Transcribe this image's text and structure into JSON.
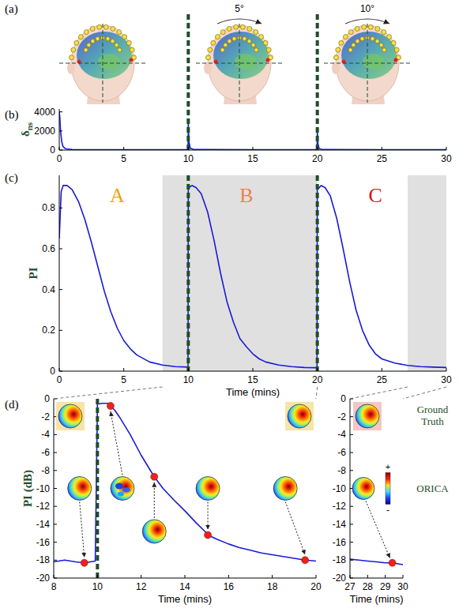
{
  "figure": {
    "panel_labels": [
      "(a)",
      "(b)",
      "(c)",
      "(d)"
    ]
  },
  "panel_a": {
    "rotation_labels": [
      "5°",
      "10°"
    ]
  },
  "chart_data": [
    {
      "type": "line",
      "xlim": [
        0,
        30
      ],
      "ylim": [
        0,
        4300
      ],
      "xticks": [
        0,
        5,
        10,
        15,
        20,
        25,
        30
      ],
      "yticks": [
        0,
        2000,
        4000
      ],
      "ylabel": "δ",
      "ylabel_subscript": "ns",
      "grid": false,
      "series": [
        {
          "color": "#1a1ad8",
          "x": [
            0,
            0.05,
            0.1,
            0.2,
            0.3,
            0.5,
            1,
            5,
            9.98,
            10,
            10.05,
            10.15,
            10.4,
            15,
            19.98,
            20,
            20.05,
            20.15,
            20.4,
            25,
            30
          ],
          "values": [
            4000,
            3300,
            2000,
            800,
            350,
            130,
            60,
            40,
            40,
            2800,
            900,
            200,
            60,
            40,
            40,
            2000,
            600,
            150,
            50,
            40,
            40
          ]
        }
      ],
      "event_times": [
        10,
        20
      ]
    },
    {
      "type": "line",
      "xlim": [
        0,
        30
      ],
      "ylim": [
        0,
        0.96
      ],
      "xticks": [
        0,
        5,
        10,
        15,
        20,
        25,
        30
      ],
      "yticks": [
        0,
        0.2,
        0.4,
        0.6,
        0.8
      ],
      "xlabel": "Time (mins)",
      "ylabel": "PI",
      "grid": false,
      "series": [
        {
          "color": "#1a1ad8",
          "x": [
            0,
            0.15,
            0.3,
            0.6,
            1,
            1.5,
            2,
            2.5,
            3,
            3.5,
            4,
            4.5,
            5,
            5.5,
            6,
            7,
            8,
            9,
            9.98,
            10,
            10.3,
            10.6,
            11,
            11.5,
            12,
            12.5,
            13,
            13.5,
            14,
            14.5,
            15,
            15.5,
            16,
            17,
            18,
            19,
            19.98,
            20,
            20.3,
            20.6,
            21,
            21.5,
            22,
            22.5,
            23,
            23.5,
            24,
            24.5,
            25,
            26,
            27,
            28,
            29,
            30
          ],
          "values": [
            0.65,
            0.88,
            0.91,
            0.91,
            0.89,
            0.83,
            0.74,
            0.63,
            0.51,
            0.39,
            0.29,
            0.21,
            0.15,
            0.11,
            0.08,
            0.045,
            0.03,
            0.022,
            0.02,
            0.9,
            0.91,
            0.9,
            0.87,
            0.78,
            0.64,
            0.48,
            0.34,
            0.24,
            0.16,
            0.12,
            0.085,
            0.06,
            0.045,
            0.03,
            0.022,
            0.018,
            0.017,
            0.89,
            0.91,
            0.9,
            0.86,
            0.75,
            0.6,
            0.44,
            0.3,
            0.2,
            0.13,
            0.085,
            0.06,
            0.04,
            0.028,
            0.022,
            0.02,
            0.018
          ]
        }
      ],
      "event_times": [
        10,
        20
      ],
      "shaded_ranges": [
        [
          8,
          20
        ],
        [
          27,
          30
        ]
      ],
      "annotations": [
        {
          "text": "A",
          "x": 4.5,
          "y": 0.83,
          "color": "#f0a30a"
        },
        {
          "text": "B",
          "x": 14.5,
          "y": 0.83,
          "color": "#f08050"
        },
        {
          "text": "C",
          "x": 24.5,
          "y": 0.83,
          "color": "#e01010"
        }
      ]
    },
    {
      "type": "line",
      "xlim": [
        8,
        20
      ],
      "ylim": [
        -20,
        0
      ],
      "xticks": [
        8,
        10,
        12,
        14,
        16,
        18,
        20
      ],
      "yticks": [
        0,
        -2,
        -4,
        -6,
        -8,
        -10,
        -12,
        -14,
        -16,
        -18,
        -20
      ],
      "xlabel": "Time (mins)",
      "ylabel": "PI (dB)",
      "grid": false,
      "series": [
        {
          "color": "#1a1ad8",
          "x": [
            8,
            8.5,
            9,
            9.4,
            9.9,
            10,
            10.2,
            10.5,
            10.6,
            10.8,
            11,
            11.5,
            12,
            12.6,
            13,
            13.5,
            14,
            14.5,
            15,
            15.05,
            15.5,
            16,
            16.5,
            17,
            17.5,
            18,
            18.5,
            19,
            19.5,
            20
          ],
          "values": [
            -18.2,
            -18.0,
            -18.2,
            -18.3,
            -18.1,
            -0.6,
            -0.5,
            -0.5,
            -0.8,
            -1.3,
            -2,
            -4,
            -6.3,
            -8.7,
            -10,
            -11.3,
            -12.5,
            -13.8,
            -15.0,
            -15.2,
            -15.7,
            -16.2,
            -16.6,
            -16.9,
            -17.2,
            -17.4,
            -17.6,
            -17.8,
            -18.0,
            -18.1
          ]
        },
        {
          "type": "scatter",
          "marker": "circle",
          "color": "#e8241c",
          "x": [
            9.4,
            10.6,
            12.6,
            15.05,
            19.5
          ],
          "values": [
            -18.3,
            -0.8,
            -8.7,
            -15.2,
            -18.0
          ]
        }
      ],
      "event_times": [
        10
      ]
    },
    {
      "type": "line",
      "xlim": [
        27,
        30
      ],
      "ylim": [
        -20,
        0
      ],
      "xticks": [
        27,
        28,
        29,
        30
      ],
      "yticks": [
        0,
        -2,
        -4,
        -6,
        -8,
        -10,
        -12,
        -14,
        -16,
        -18,
        -20
      ],
      "xlabel": "Time (mins)",
      "grid": false,
      "series": [
        {
          "color": "#1a1ad8",
          "x": [
            27,
            27.5,
            28,
            28.5,
            29,
            29.4,
            30
          ],
          "values": [
            -17.9,
            -18.0,
            -18.1,
            -18.2,
            -18.3,
            -18.3,
            -18.5
          ]
        },
        {
          "type": "scatter",
          "marker": "circle",
          "color": "#e8241c",
          "x": [
            29.4
          ],
          "values": [
            -18.3
          ]
        }
      ],
      "colorbar_labels": [
        "+",
        "-"
      ],
      "row_labels": [
        "Ground Truth",
        "ORICA"
      ]
    }
  ]
}
